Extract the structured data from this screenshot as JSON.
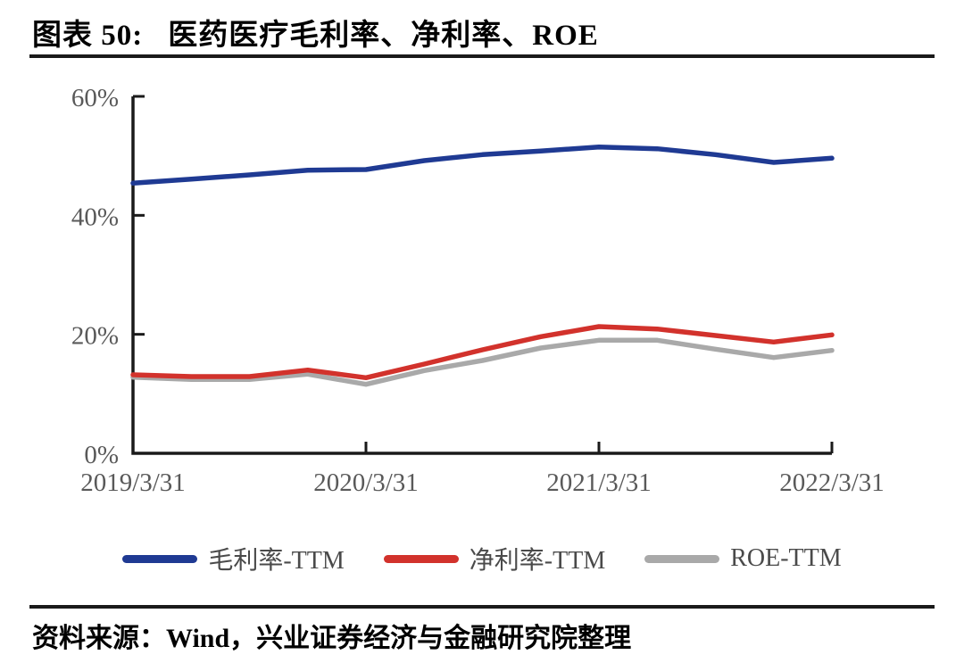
{
  "figure": {
    "label": "图表 50:",
    "title": "医药医疗毛利率、净利率、ROE"
  },
  "source": {
    "text": "资料来源：Wind，兴业证券经济与金融研究院整理"
  },
  "colors": {
    "axis": "#1a1a1a",
    "tick_label": "#595959",
    "blue": "#1F3A93",
    "red": "#D2322C",
    "gray": "#A9A9A9"
  },
  "chart_data": {
    "type": "line",
    "title": "医药医疗毛利率、净利率、ROE",
    "x": [
      "2019/3/31",
      "2019/6/30",
      "2019/9/30",
      "2019/12/31",
      "2020/3/31",
      "2020/6/30",
      "2020/9/30",
      "2020/12/31",
      "2021/3/31",
      "2021/6/30",
      "2021/9/30",
      "2021/12/31",
      "2022/3/31"
    ],
    "x_tick_labels": [
      "2019/3/31",
      "2020/3/31",
      "2021/3/31",
      "2022/3/31"
    ],
    "y_ticks": [
      0,
      20,
      40,
      60
    ],
    "y_tick_labels": [
      "0%",
      "20%",
      "40%",
      "60%"
    ],
    "ylim": [
      0,
      60
    ],
    "xlabel": "",
    "ylabel": "",
    "grid": false,
    "legend_position": "bottom",
    "series": [
      {
        "id": "gross-margin-ttm",
        "name": "毛利率-TTM",
        "color": "#1F3A93",
        "values": [
          45.4,
          46.1,
          46.8,
          47.6,
          47.7,
          49.2,
          50.2,
          50.8,
          51.5,
          51.2,
          50.2,
          48.9,
          49.6
        ]
      },
      {
        "id": "net-margin-ttm",
        "name": "净利率-TTM",
        "color": "#D2322C",
        "values": [
          13.2,
          12.9,
          12.9,
          14.0,
          12.7,
          15.0,
          17.4,
          19.6,
          21.3,
          20.9,
          19.8,
          18.7,
          19.9
        ]
      },
      {
        "id": "roe-ttm",
        "name": "ROE-TTM",
        "color": "#A9A9A9",
        "values": [
          12.8,
          12.4,
          12.4,
          13.3,
          11.6,
          13.9,
          15.6,
          17.7,
          19.0,
          19.0,
          17.5,
          16.1,
          17.3
        ]
      }
    ]
  }
}
